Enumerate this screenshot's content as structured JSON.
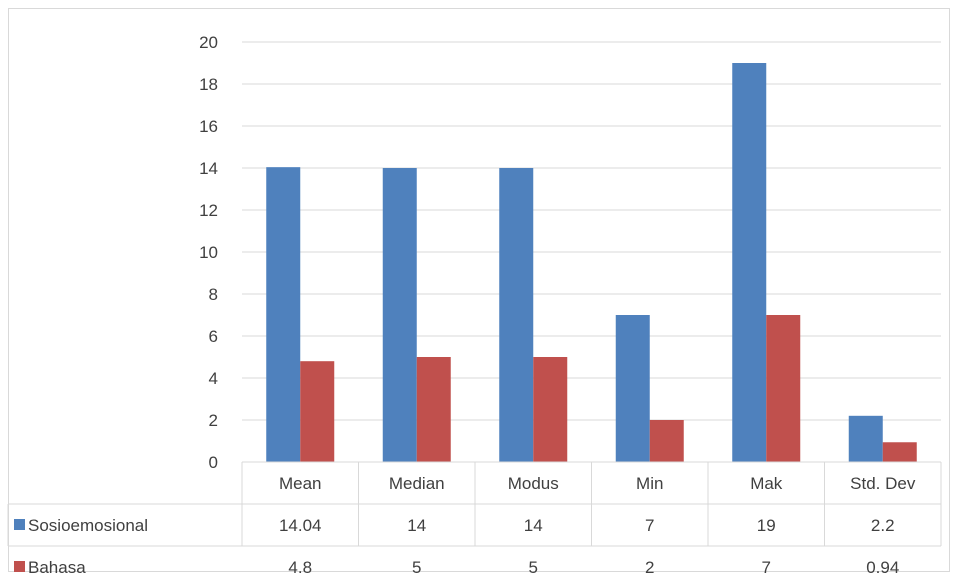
{
  "chart_data": {
    "type": "bar",
    "title": "",
    "xlabel": "",
    "ylabel": "",
    "ylim": [
      0,
      20
    ],
    "yticks": [
      0,
      2,
      4,
      6,
      8,
      10,
      12,
      14,
      16,
      18,
      20
    ],
    "grid": true,
    "legend": "data-table-left",
    "categories": [
      "Mean",
      "Median",
      "Modus",
      "Min",
      "Mak",
      "Std. Dev"
    ],
    "series": [
      {
        "name": "Sosioemosional",
        "color": "#4f81bd",
        "values": [
          14.04,
          14,
          14,
          7,
          19,
          2.2
        ],
        "labels": [
          "14.04",
          "14",
          "14",
          "7",
          "19",
          "2.2"
        ]
      },
      {
        "name": "Bahasa",
        "color": "#c0504d",
        "values": [
          4.8,
          5,
          5,
          2,
          7,
          0.94
        ],
        "labels": [
          "4.8",
          "5",
          "5",
          "2",
          "7",
          "0.94"
        ]
      }
    ]
  }
}
